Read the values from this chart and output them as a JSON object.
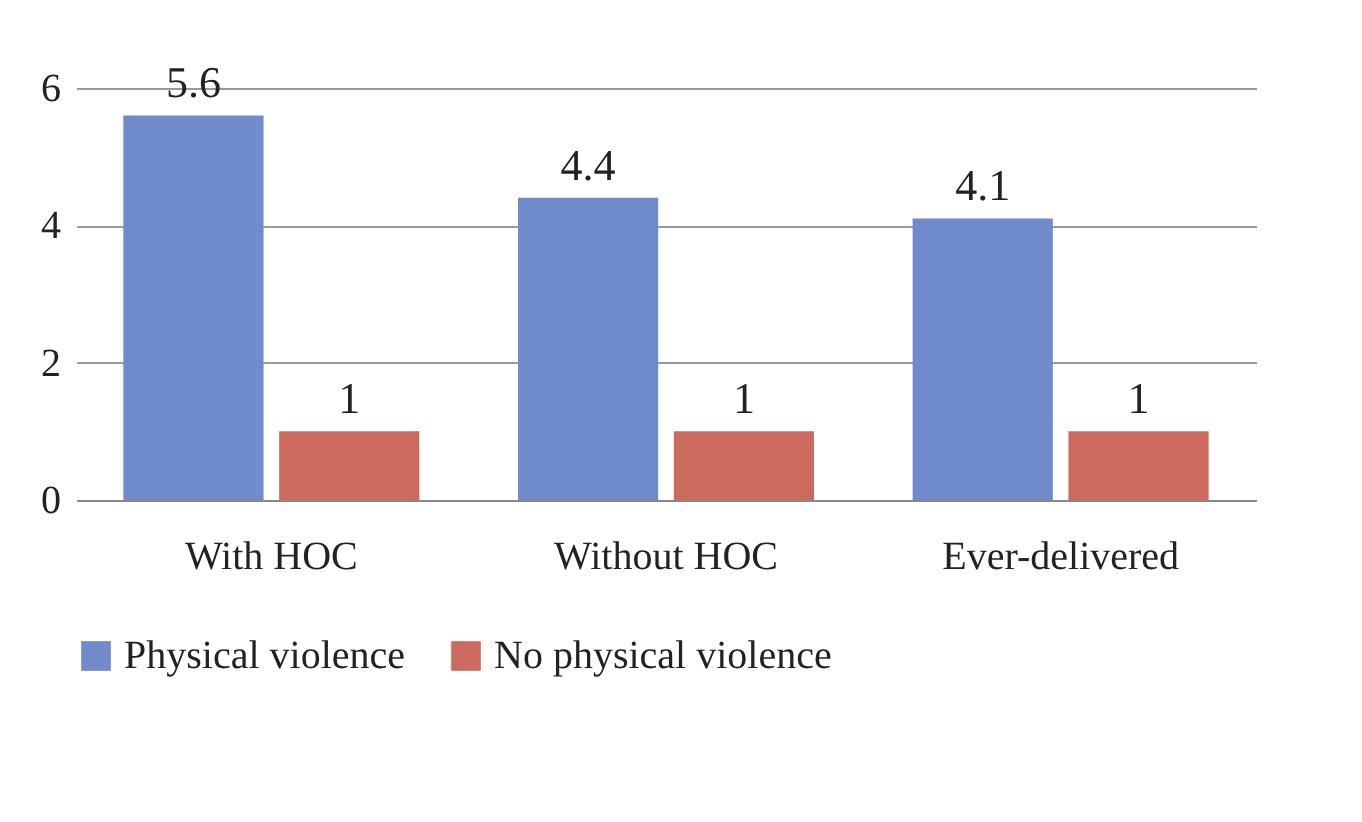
{
  "chart_data": {
    "type": "bar",
    "categories": [
      "With HOC",
      "Without HOC",
      "Ever-delivered"
    ],
    "series": [
      {
        "name": "Physical violence",
        "color": "#6f8bcb",
        "values": [
          5.6,
          4.4,
          4.1
        ]
      },
      {
        "name": "No physical violence",
        "color": "#cc6a5e",
        "values": [
          1,
          1,
          1
        ]
      }
    ],
    "ylim": [
      0,
      6
    ],
    "yticks": [
      0,
      2,
      4,
      6
    ],
    "grid": "y",
    "legend": "bottom",
    "data_labels": true
  }
}
